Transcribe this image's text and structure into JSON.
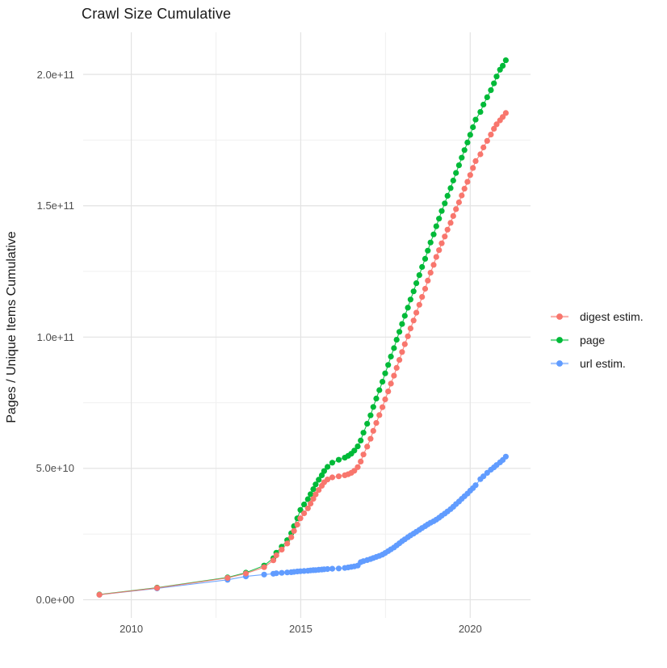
{
  "title": "Crawl Size Cumulative",
  "y_axis_title": "Pages / Unique Items Cumulative",
  "legend": {
    "position": "right",
    "items": [
      {
        "label": "digest estim.",
        "color": "#F8766D"
      },
      {
        "label": "page",
        "color": "#00BA38"
      },
      {
        "label": "url estim.",
        "color": "#619CFF"
      }
    ]
  },
  "chart_data": {
    "type": "scatter",
    "title": "Crawl Size Cumulative",
    "xlabel": "",
    "ylabel": "Pages / Unique Items Cumulative",
    "grid": true,
    "legend_position": "right",
    "xlim": [
      2008.58,
      2021.78
    ],
    "ylim_billions": [
      -6.92,
      216.03
    ],
    "x_ticks": {
      "values": [
        2010,
        2015,
        2020
      ],
      "labels": [
        "2010",
        "2015",
        "2020"
      ]
    },
    "x_minor_ticks": [
      2012.5,
      2017.5
    ],
    "y_ticks": {
      "values_billions": [
        0,
        50,
        100,
        150,
        200
      ],
      "labels": [
        "0.0e+00",
        "5.0e+10",
        "1.0e+11",
        "1.5e+11",
        "2.0e+11"
      ]
    },
    "y_minor_ticks_billions": [
      25,
      75,
      125,
      175
    ],
    "value_unit_note": "values_in_billions are cumulative counts x 1e9",
    "x": [
      2009.06,
      2010.76,
      2012.84,
      2013.38,
      2013.92,
      2014.19,
      2014.28,
      2014.44,
      2014.6,
      2014.72,
      2014.8,
      2014.9,
      2014.99,
      2015.1,
      2015.21,
      2015.29,
      2015.37,
      2015.44,
      2015.53,
      2015.62,
      2015.69,
      2015.79,
      2015.93,
      2016.12,
      2016.3,
      2016.4,
      2016.49,
      2016.58,
      2016.68,
      2016.77,
      2016.85,
      2016.96,
      2017.06,
      2017.14,
      2017.23,
      2017.32,
      2017.41,
      2017.49,
      2017.58,
      2017.66,
      2017.75,
      2017.83,
      2017.91,
      2017.99,
      2018.07,
      2018.16,
      2018.24,
      2018.33,
      2018.41,
      2018.5,
      2018.58,
      2018.67,
      2018.75,
      2018.83,
      2018.92,
      2019.0,
      2019.08,
      2019.16,
      2019.25,
      2019.33,
      2019.42,
      2019.5,
      2019.58,
      2019.67,
      2019.75,
      2019.83,
      2019.92,
      2020.0,
      2020.08,
      2020.16,
      2020.3,
      2020.39,
      2020.5,
      2020.61,
      2020.7,
      2020.78,
      2020.88,
      2020.96,
      2021.05
    ],
    "series": [
      {
        "name": "digest estim.",
        "color": "#F8766D",
        "values_in_billions": [
          1.9,
          4.5,
          8.3,
          10.0,
          12.4,
          15.0,
          16.9,
          19.1,
          21.4,
          23.8,
          26.2,
          28.6,
          31.0,
          32.9,
          34.8,
          36.6,
          38.4,
          40.1,
          41.8,
          43.4,
          44.7,
          45.8,
          46.6,
          47.0,
          47.4,
          47.8,
          48.3,
          49.1,
          50.5,
          52.6,
          55.3,
          58.3,
          61.3,
          64.3,
          67.3,
          70.3,
          73.3,
          76.3,
          79.3,
          82.3,
          85.3,
          88.3,
          91.3,
          94.3,
          97.3,
          100.3,
          103.3,
          106.3,
          109.3,
          112.3,
          115.3,
          118.4,
          121.5,
          124.5,
          127.5,
          130.5,
          133.1,
          135.7,
          138.3,
          140.9,
          143.5,
          146.1,
          148.7,
          151.3,
          153.9,
          156.5,
          159.1,
          161.7,
          164.4,
          167.0,
          169.6,
          172.2,
          174.7,
          177.1,
          179.3,
          181.0,
          182.5,
          183.8,
          185.3
        ]
      },
      {
        "name": "page",
        "color": "#00BA38",
        "values_in_billions": [
          2.0,
          4.6,
          8.5,
          10.3,
          13.0,
          15.8,
          17.9,
          20.2,
          22.7,
          25.3,
          28.0,
          31.0,
          34.2,
          36.3,
          38.3,
          40.2,
          42.1,
          43.9,
          45.7,
          47.4,
          49.0,
          50.6,
          52.2,
          53.3,
          54.1,
          54.8,
          55.6,
          56.8,
          58.4,
          60.6,
          63.6,
          67.0,
          70.2,
          73.4,
          76.6,
          79.8,
          83.0,
          86.2,
          89.4,
          92.6,
          95.8,
          99.0,
          102.0,
          105.0,
          108.1,
          111.2,
          114.3,
          117.4,
          120.5,
          123.6,
          126.7,
          129.8,
          132.9,
          136.0,
          139.1,
          142.2,
          145.1,
          148.0,
          150.9,
          153.8,
          156.7,
          159.6,
          162.5,
          165.4,
          168.3,
          171.2,
          174.1,
          177.0,
          179.9,
          182.8,
          185.7,
          188.5,
          191.3,
          194.0,
          196.6,
          199.2,
          201.8,
          203.3,
          205.4
        ]
      },
      {
        "name": "url estim.",
        "color": "#619CFF",
        "values_in_billions": [
          1.9,
          4.3,
          7.6,
          8.9,
          9.6,
          9.9,
          10.1,
          10.25,
          10.4,
          10.5,
          10.6,
          10.75,
          10.85,
          10.95,
          11.05,
          11.15,
          11.25,
          11.3,
          11.4,
          11.5,
          11.6,
          11.7,
          11.8,
          11.9,
          12.1,
          12.3,
          12.5,
          12.7,
          13.0,
          14.3,
          14.7,
          15.1,
          15.5,
          15.9,
          16.3,
          16.7,
          17.2,
          17.8,
          18.5,
          19.2,
          19.9,
          20.7,
          21.5,
          22.3,
          23.0,
          23.8,
          24.5,
          25.2,
          25.9,
          26.6,
          27.3,
          28.0,
          28.7,
          29.3,
          29.9,
          30.5,
          31.2,
          32.0,
          32.8,
          33.6,
          34.5,
          35.4,
          36.4,
          37.4,
          38.4,
          39.4,
          40.4,
          41.5,
          42.5,
          43.6,
          45.9,
          47.0,
          48.3,
          49.5,
          50.4,
          51.3,
          52.3,
          53.2,
          54.5
        ]
      }
    ]
  }
}
